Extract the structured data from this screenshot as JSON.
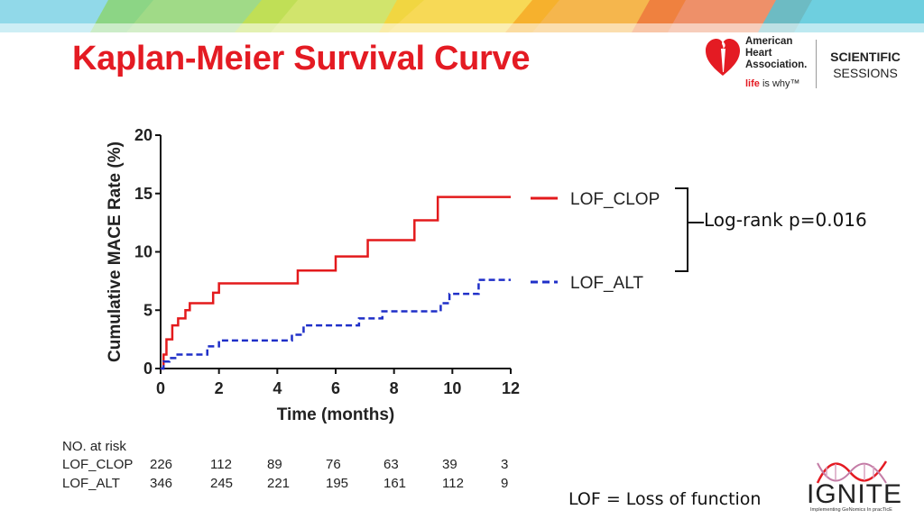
{
  "title": "Kaplan-Meier Survival Curve",
  "logo_aha": {
    "name": "American\nHeart\nAssociation.",
    "tagline_life": "life",
    "tagline_rest": " is why™",
    "sessions_line1": "SCIENTIFIC",
    "sessions_line2": "SESSIONS"
  },
  "logo_ignite": {
    "word": "IGNITE",
    "subtitle": "Implementing GeNomics In pracTicE"
  },
  "colors": {
    "title": "#e41b23",
    "clop": "#e31a1c",
    "alt": "#1f2fc8"
  },
  "chart_data": {
    "type": "line",
    "subtype": "kaplan-meier step",
    "xlabel": "Time (months)",
    "ylabel": "Cumulative MACE Rate (%)",
    "xlim": [
      0,
      12
    ],
    "ylim": [
      0,
      20
    ],
    "xticks": [
      "0",
      "2",
      "4",
      "6",
      "8",
      "10",
      "12"
    ],
    "yticks": [
      "0",
      "5",
      "10",
      "15",
      "20"
    ],
    "legend_position": "right",
    "series": [
      {
        "name": "LOF_CLOP",
        "style": "solid",
        "x": [
          0,
          0.1,
          0.2,
          0.3,
          0.4,
          0.5,
          0.6,
          0.7,
          0.85,
          1.0,
          1.7,
          1.8,
          2.0,
          3.5,
          4.7,
          6.0,
          7.1,
          8.7,
          9.5,
          12.0
        ],
        "y": [
          0,
          1.2,
          2.5,
          2.5,
          3.7,
          3.7,
          4.3,
          4.3,
          5.0,
          5.6,
          5.6,
          6.5,
          7.3,
          7.3,
          8.4,
          9.6,
          11.0,
          12.7,
          14.7,
          14.7
        ]
      },
      {
        "name": "LOF_ALT",
        "style": "dashed",
        "x": [
          0,
          0.1,
          0.3,
          0.5,
          1.0,
          1.6,
          2.0,
          3.5,
          4.5,
          4.9,
          5.5,
          6.8,
          7.6,
          8.5,
          9.6,
          9.9,
          10.9,
          12.0
        ],
        "y": [
          0,
          0.6,
          0.9,
          1.2,
          1.2,
          1.9,
          2.4,
          2.4,
          2.9,
          3.7,
          3.7,
          4.3,
          4.9,
          4.9,
          5.6,
          6.4,
          7.6,
          7.6
        ]
      }
    ],
    "annotation": "Log-rank p=0.016",
    "risk_table": {
      "header": "NO. at risk",
      "rows": [
        {
          "label": "LOF_CLOP",
          "values": [
            "226",
            "112",
            "89",
            "76",
            "63",
            "39",
            "3"
          ]
        },
        {
          "label": "LOF_ALT",
          "values": [
            "346",
            "245",
            "221",
            "195",
            "161",
            "112",
            "9"
          ]
        }
      ]
    }
  },
  "footnote": "LOF = Loss of function"
}
